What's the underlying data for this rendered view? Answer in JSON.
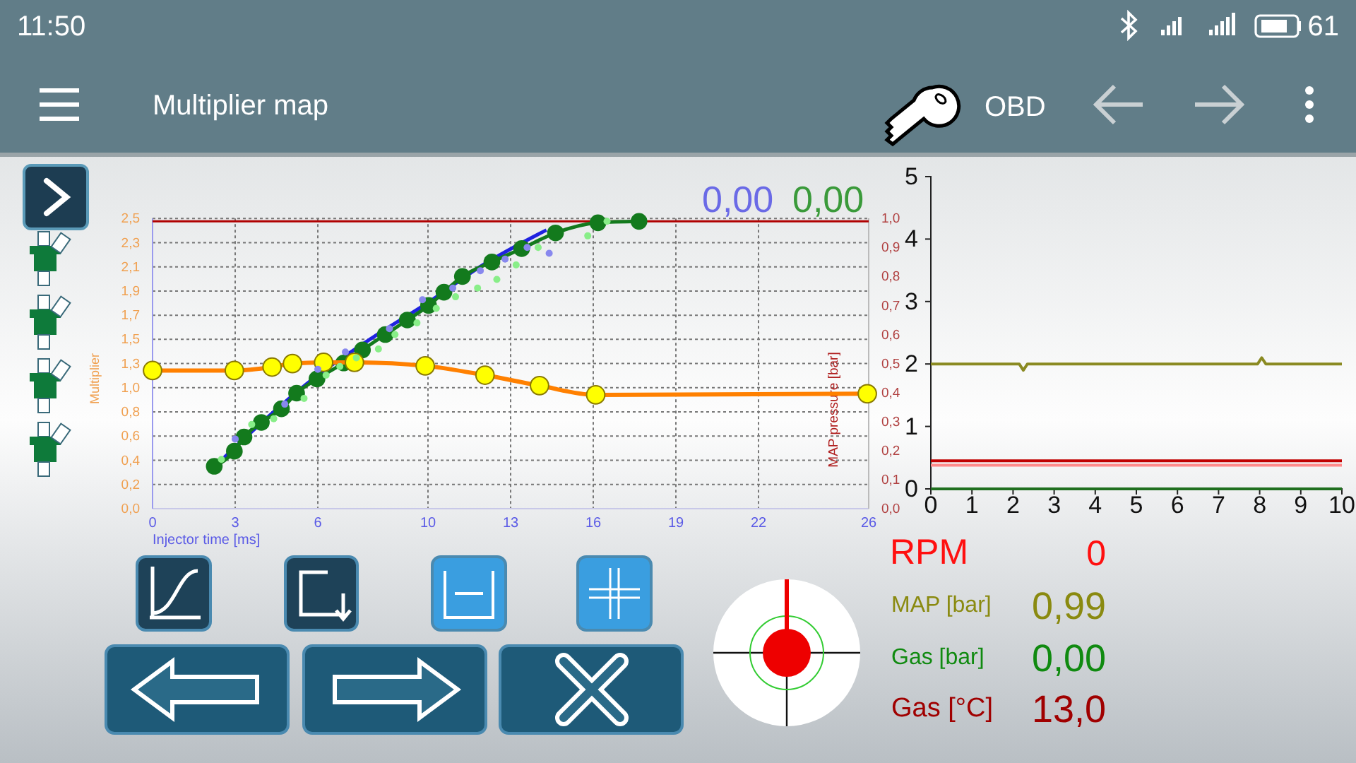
{
  "chart_data": [
    {
      "type": "line",
      "title": "Multiplier map",
      "xlabel": "Injector time [ms]",
      "ylabel": "Multiplier",
      "y2label": "MAP pressure [bar]",
      "xlim": [
        0,
        26
      ],
      "xticks": [
        0,
        3,
        6,
        10,
        13,
        16,
        19,
        22,
        26
      ],
      "ylim": [
        0,
        2.5
      ],
      "yticks": [
        {
          "value": 0,
          "label": "0,0"
        },
        {
          "value": 0.2083,
          "label": "0,2"
        },
        {
          "value": 0.4167,
          "label": "0,4"
        },
        {
          "value": 0.625,
          "label": "0,6"
        },
        {
          "value": 0.8333,
          "label": "0,8"
        },
        {
          "value": 1.0417,
          "label": "1,0"
        },
        {
          "value": 1.25,
          "label": "1,3"
        },
        {
          "value": 1.4583,
          "label": "1,5"
        },
        {
          "value": 1.6667,
          "label": "1,7"
        },
        {
          "value": 1.875,
          "label": "1,9"
        },
        {
          "value": 2.0833,
          "label": "2,1"
        },
        {
          "value": 2.2917,
          "label": "2,3"
        },
        {
          "value": 2.5,
          "label": "2,5"
        }
      ],
      "y2lim": [
        0,
        1
      ],
      "y2ticks": [
        {
          "value": 0,
          "label": "0,0"
        },
        {
          "value": 0.1,
          "label": "0,1"
        },
        {
          "value": 0.2,
          "label": "0,2"
        },
        {
          "value": 0.3,
          "label": "0,3"
        },
        {
          "value": 0.4,
          "label": "0,4"
        },
        {
          "value": 0.5,
          "label": "0,5"
        },
        {
          "value": 0.6,
          "label": "0,6"
        },
        {
          "value": 0.7,
          "label": "0,7"
        },
        {
          "value": 0.8,
          "label": "0,8"
        },
        {
          "value": 0.9,
          "label": "0,9"
        },
        {
          "value": 1,
          "label": "1,0"
        }
      ],
      "grid": true,
      "ref_lines": [
        {
          "axis": "y2",
          "value": 0.99,
          "color": "#b00000"
        }
      ],
      "annotations": [
        "0,00",
        "0,00"
      ],
      "series": [
        {
          "type": "scatter",
          "axis": "y2",
          "color": "#88ee88",
          "x": [
            2.5,
            3.6,
            4.4,
            5.5,
            6.3,
            6.8,
            7.4,
            8.2,
            8.8,
            9.6,
            10.3,
            11.0,
            11.8,
            12.5,
            13.2,
            14.0,
            15.8,
            16.5
          ],
          "values": [
            0.17,
            0.29,
            0.31,
            0.38,
            0.46,
            0.49,
            0.52,
            0.55,
            0.6,
            0.64,
            0.69,
            0.73,
            0.76,
            0.79,
            0.84,
            0.9,
            0.94,
            0.99
          ]
        },
        {
          "type": "scatter",
          "axis": "y2",
          "color": "#8888ee",
          "x": [
            3.0,
            4.8,
            6.0,
            7.0,
            8.6,
            9.8,
            10.9,
            11.9,
            12.8,
            13.6,
            14.4
          ],
          "values": [
            0.24,
            0.36,
            0.48,
            0.54,
            0.62,
            0.72,
            0.76,
            0.82,
            0.86,
            0.9,
            0.88
          ]
        },
        {
          "type": "line",
          "axis": "y2",
          "color": "#1f22e0",
          "marker": "none",
          "x": [
            2.2,
            4.0,
            6.0,
            8.0,
            10.0,
            12.0,
            14.3
          ],
          "values": [
            0.14,
            0.3,
            0.46,
            0.59,
            0.71,
            0.84,
            0.96
          ]
        },
        {
          "type": "line",
          "axis": "y2",
          "color": "#137a1d",
          "marker": "circle",
          "x": [
            2.24,
            2.97,
            3.32,
            3.95,
            4.68,
            5.23,
            5.97,
            6.94,
            7.62,
            8.45,
            9.25,
            10.02,
            10.58,
            11.25,
            12.32,
            13.4,
            14.63,
            16.17,
            17.66
          ],
          "values": [
            0.146,
            0.198,
            0.247,
            0.297,
            0.344,
            0.398,
            0.447,
            0.502,
            0.547,
            0.6,
            0.65,
            0.7,
            0.746,
            0.8,
            0.85,
            0.896,
            0.95,
            0.985,
            0.99
          ]
        },
        {
          "type": "line",
          "color": "#ff8000",
          "marker": "circle",
          "x": [
            0,
            2.97,
            4.34,
            5.08,
            6.21,
            7.33,
            9.9,
            12.07,
            14.05,
            16.09,
            25.95
          ],
          "values": [
            1.19,
            1.19,
            1.22,
            1.25,
            1.26,
            1.26,
            1.23,
            1.15,
            1.06,
            0.98,
            0.99
          ]
        }
      ]
    },
    {
      "type": "line",
      "xlim": [
        0,
        10
      ],
      "xticks": [
        0,
        1,
        2,
        3,
        4,
        5,
        6,
        7,
        8,
        9,
        10
      ],
      "ylim": [
        0,
        5
      ],
      "yticks": [
        0,
        1,
        2,
        3,
        4,
        5
      ],
      "series": [
        {
          "color": "#8a8a22",
          "x": [
            0,
            2.15,
            2.25,
            2.35,
            7.95,
            8.05,
            8.15,
            10
          ],
          "values": [
            2,
            2,
            1.9,
            2,
            2,
            2.1,
            2,
            2
          ]
        },
        {
          "color": "#c00000",
          "x": [
            0,
            10
          ],
          "values": [
            0.45,
            0.45
          ]
        },
        {
          "color": "#ff8a8a",
          "x": [
            0,
            10
          ],
          "values": [
            0.38,
            0.38
          ]
        },
        {
          "color": "#1f6f1f",
          "x": [
            0,
            10
          ],
          "values": [
            0,
            0
          ]
        }
      ]
    },
    {
      "type": "other",
      "annotations": [
        "11:50",
        "61",
        "OBD",
        "RPM",
        "0",
        "MAP [bar]",
        "0,99",
        "Gas [bar]",
        "0,00",
        "Gas [°C]",
        "13,0"
      ]
    }
  ]
}
